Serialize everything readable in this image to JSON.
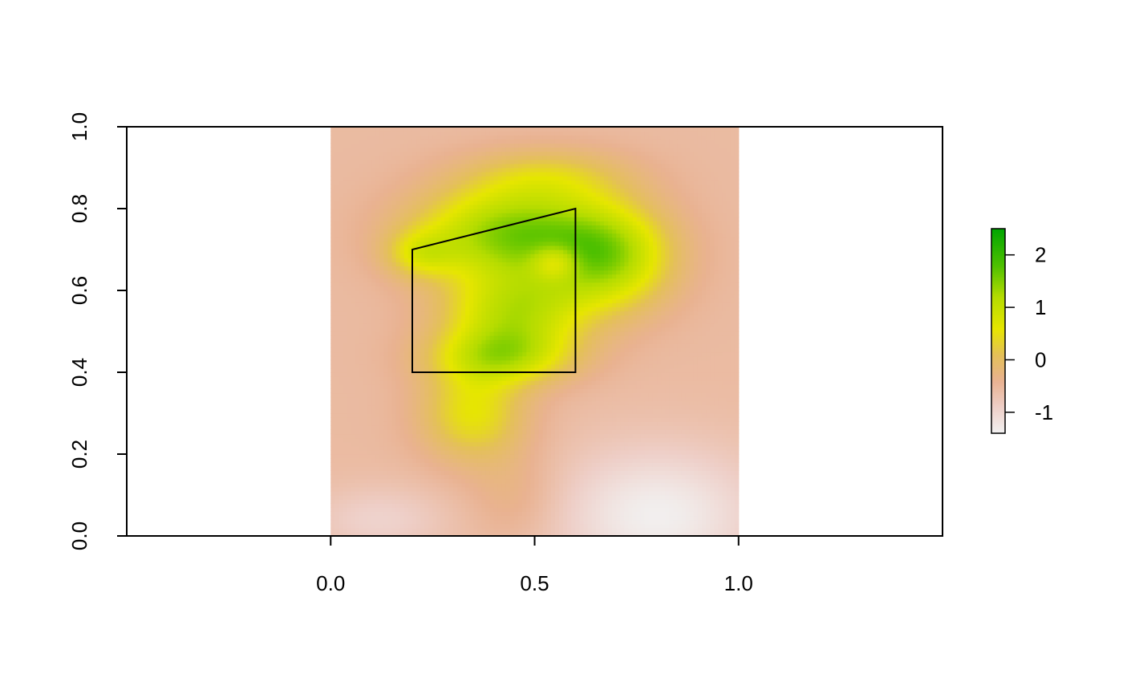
{
  "chart_data": {
    "type": "heatmap",
    "title": "",
    "xlabel": "",
    "ylabel": "",
    "xlim": [
      -0.5,
      1.5
    ],
    "ylim": [
      0,
      1
    ],
    "raster_extent": {
      "x": [
        0,
        1
      ],
      "y": [
        0,
        1
      ]
    },
    "x_ticks": [
      {
        "value": 0.0,
        "label": "0.0"
      },
      {
        "value": 0.5,
        "label": "0.5"
      },
      {
        "value": 1.0,
        "label": "1.0"
      }
    ],
    "y_ticks": [
      {
        "value": 0.0,
        "label": "0.0"
      },
      {
        "value": 0.2,
        "label": "0.2"
      },
      {
        "value": 0.4,
        "label": "0.4"
      },
      {
        "value": 0.6,
        "label": "0.6"
      },
      {
        "value": 0.8,
        "label": "0.8"
      },
      {
        "value": 1.0,
        "label": "1.0"
      }
    ],
    "grid": false,
    "legend": {
      "kind": "colorbar",
      "placement": "right",
      "range": [
        -1.4,
        2.5
      ],
      "ticks": [
        {
          "value": 2,
          "label": "2"
        },
        {
          "value": 1,
          "label": "1"
        },
        {
          "value": 0,
          "label": "0"
        },
        {
          "value": -1,
          "label": "-1"
        }
      ]
    },
    "color_scale": [
      {
        "value": -1.4,
        "color": "#f2f2f2"
      },
      {
        "value": -0.9,
        "color": "#eecfc8"
      },
      {
        "value": -0.4,
        "color": "#e9b291"
      },
      {
        "value": 0.1,
        "color": "#e4c058"
      },
      {
        "value": 0.6,
        "color": "#e6e600"
      },
      {
        "value": 1.2,
        "color": "#b5dc00"
      },
      {
        "value": 1.8,
        "color": "#4ec000"
      },
      {
        "value": 2.5,
        "color": "#00a600"
      }
    ],
    "surface_components": [
      {
        "cx": 0.44,
        "cy": 0.74,
        "sx": 0.16,
        "sy": 0.08,
        "amp": 2.0
      },
      {
        "cx": 0.68,
        "cy": 0.68,
        "sx": 0.11,
        "sy": 0.09,
        "amp": 1.7
      },
      {
        "cx": 0.45,
        "cy": 0.55,
        "sx": 0.12,
        "sy": 0.07,
        "amp": 1.5
      },
      {
        "cx": 0.42,
        "cy": 0.44,
        "sx": 0.12,
        "sy": 0.05,
        "amp": 1.4
      },
      {
        "cx": 0.35,
        "cy": 0.3,
        "sx": 0.09,
        "sy": 0.08,
        "amp": 1.1
      },
      {
        "cx": 0.22,
        "cy": 0.69,
        "sx": 0.06,
        "sy": 0.04,
        "amp": 0.8
      },
      {
        "cx": 0.53,
        "cy": 0.88,
        "sx": 0.14,
        "sy": 0.05,
        "amp": 0.7
      },
      {
        "cx": 0.55,
        "cy": 0.67,
        "sx": 0.04,
        "sy": 0.03,
        "amp": -0.9
      },
      {
        "cx": 0.8,
        "cy": 0.05,
        "sx": 0.18,
        "sy": 0.12,
        "amp": -0.8
      },
      {
        "cx": 0.12,
        "cy": 0.04,
        "sx": 0.12,
        "sy": 0.06,
        "amp": -0.4
      },
      {
        "cx": 0.45,
        "cy": 0.1,
        "sx": 0.08,
        "sy": 0.08,
        "amp": 0.3
      }
    ],
    "surface_baseline": -0.55,
    "annotations": [
      {
        "type": "polygon",
        "points": [
          [
            0.2,
            0.4
          ],
          [
            0.2,
            0.7
          ],
          [
            0.6,
            0.8
          ],
          [
            0.6,
            0.4
          ]
        ]
      }
    ]
  }
}
